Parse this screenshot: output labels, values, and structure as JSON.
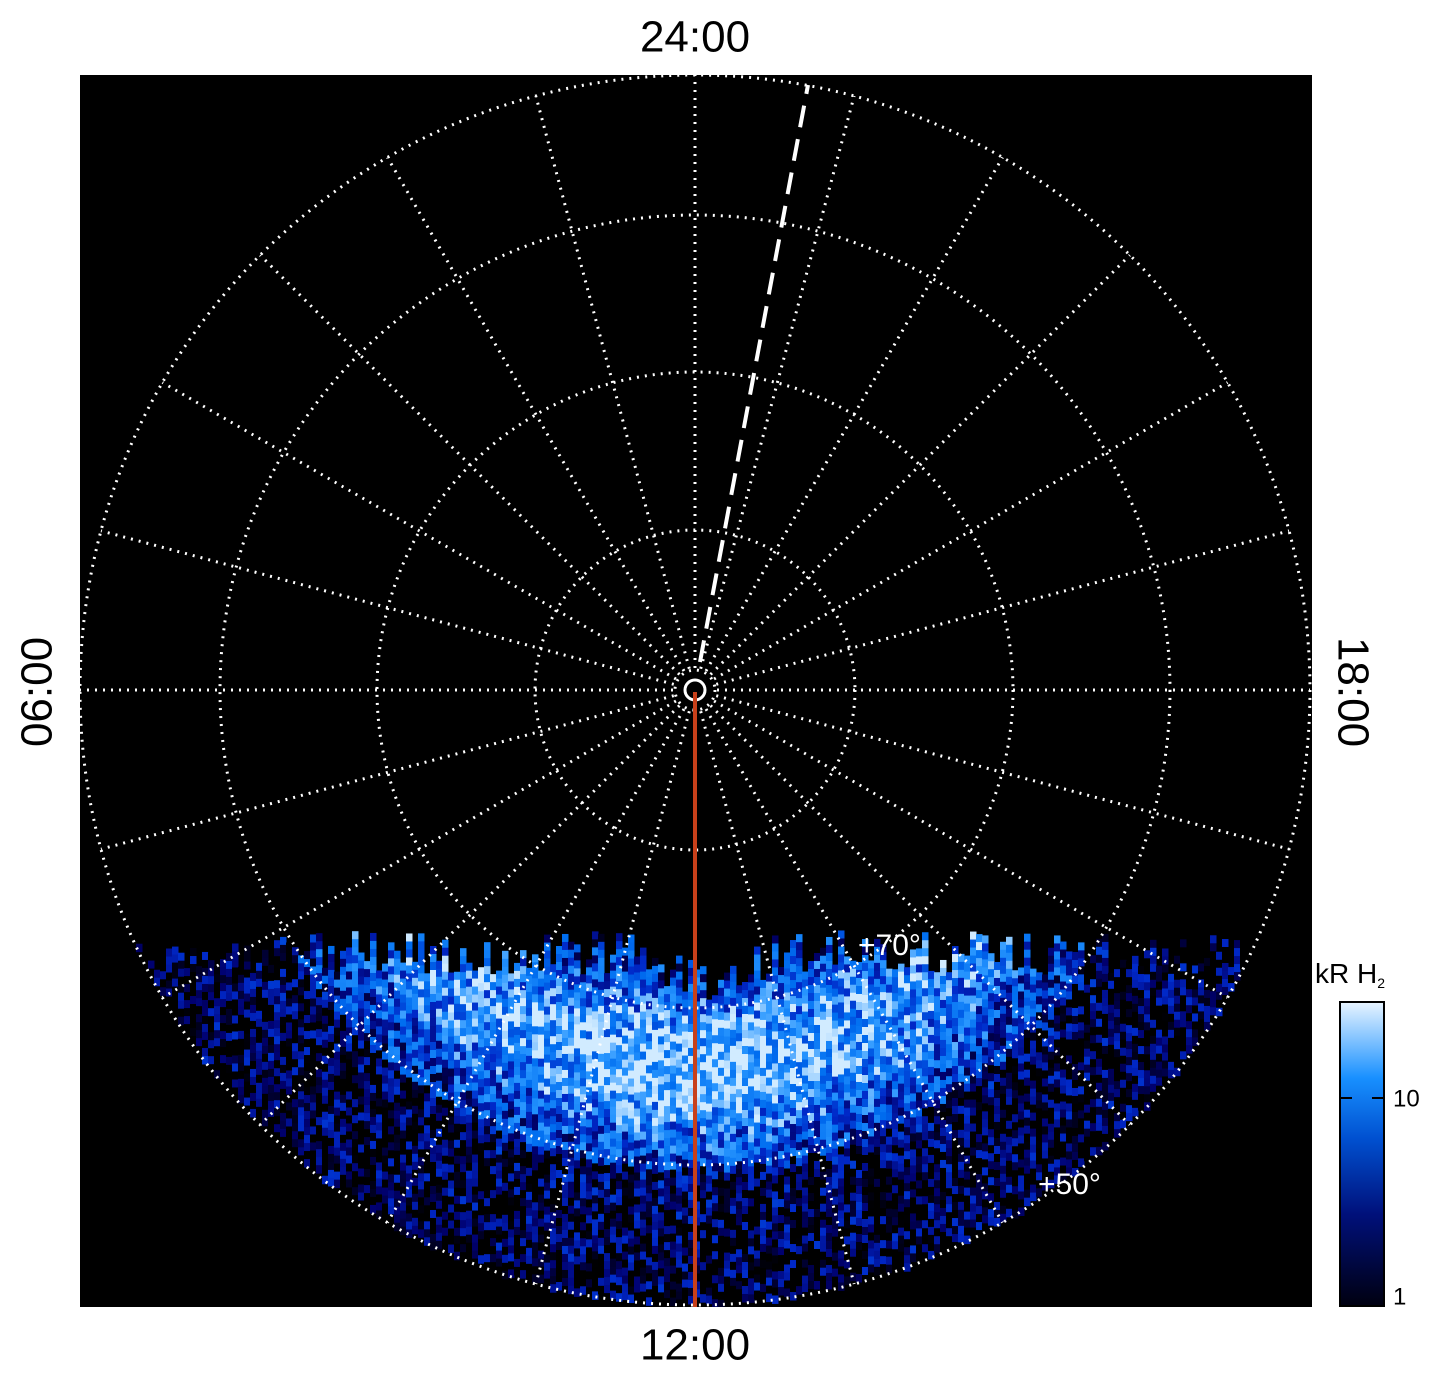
{
  "local_time_labels": {
    "top": "24:00",
    "left": "06:00",
    "bottom": "12:00",
    "right": "18:00"
  },
  "latitude_labels": [
    "+70°",
    "+50°"
  ],
  "colorbar": {
    "title": "kR H",
    "title_subscript": "2",
    "ticks": [
      "10",
      "1"
    ]
  }
}
